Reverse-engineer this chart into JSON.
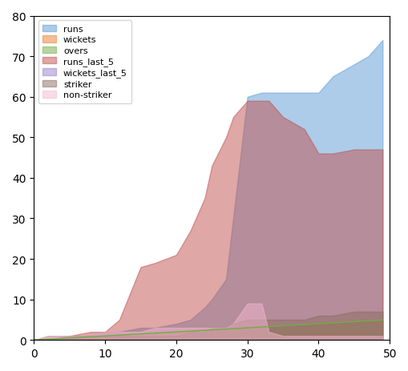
{
  "x": [
    0,
    2,
    5,
    8,
    10,
    12,
    15,
    17,
    20,
    22,
    24,
    25,
    27,
    28,
    30,
    32,
    33,
    35,
    38,
    40,
    42,
    45,
    47,
    49
  ],
  "runs": [
    0,
    0,
    1,
    1,
    2,
    2,
    3,
    3,
    4,
    5,
    8,
    10,
    15,
    30,
    60,
    61,
    61,
    61,
    61,
    61,
    65,
    68,
    70,
    74
  ],
  "wickets": [
    0,
    0,
    0,
    0,
    0,
    0,
    0,
    0,
    0,
    0,
    0,
    0,
    0,
    0,
    0,
    0,
    0,
    0,
    0,
    0,
    0,
    0,
    0,
    0
  ],
  "overs": [
    0,
    0.2,
    0.5,
    0.8,
    1.0,
    1.2,
    1.5,
    1.7,
    2.0,
    2.2,
    2.4,
    2.5,
    2.7,
    2.8,
    3.0,
    3.2,
    3.3,
    3.5,
    3.8,
    4.0,
    4.2,
    4.5,
    4.7,
    4.9
  ],
  "runs_last_5": [
    0,
    0,
    1,
    2,
    2,
    5,
    18,
    19,
    21,
    27,
    35,
    43,
    50,
    55,
    59,
    59,
    59,
    55,
    52,
    46,
    46,
    47,
    47,
    47
  ],
  "wickets_last_5": [
    0,
    0,
    0,
    0,
    0,
    0,
    0,
    0,
    0,
    0,
    0,
    0,
    0,
    0,
    0,
    0,
    0,
    0,
    0,
    0,
    0,
    0,
    0,
    0
  ],
  "striker": [
    0,
    1,
    1,
    1,
    1,
    1,
    1,
    1,
    1,
    2,
    2,
    3,
    3,
    4,
    5,
    5,
    5,
    5,
    5,
    6,
    6,
    7,
    7,
    7
  ],
  "non_striker": [
    0,
    1,
    1,
    1,
    2,
    2,
    2,
    3,
    3,
    3,
    3,
    3,
    3,
    4,
    9,
    9,
    2,
    1,
    1,
    1,
    1,
    1,
    1,
    1
  ],
  "colors": {
    "runs": "#5b9bd5",
    "wickets": "#ed7d31",
    "overs": "#70ad47",
    "runs_last_5": "#c0504d",
    "wickets_last_5": "#9b7fca",
    "striker": "#8c6d62",
    "non_striker": "#f4b8d0"
  },
  "xlim": [
    0,
    50
  ],
  "ylim": [
    0,
    80
  ],
  "alpha": 0.5
}
